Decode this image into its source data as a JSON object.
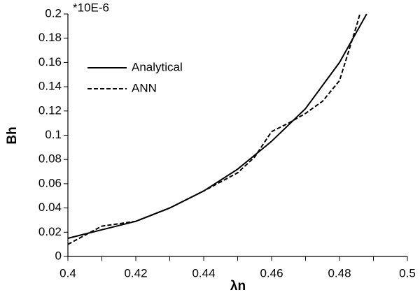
{
  "chart_data": {
    "type": "line",
    "x_label": "λn",
    "y_label": "Bh",
    "annotation": "*10E-6",
    "xlim": [
      0.4,
      0.5
    ],
    "xticks": [
      0.4,
      0.42,
      0.44,
      0.46,
      0.48,
      0.5
    ],
    "xminorticks": [
      0.41,
      0.43,
      0.45,
      0.47,
      0.49
    ],
    "ylim": [
      0,
      0.2
    ],
    "yticks": [
      0,
      0.02,
      0.04,
      0.06,
      0.08,
      0.1,
      0.12,
      0.14,
      0.16,
      0.18,
      0.2
    ],
    "legend": "upper left",
    "series": [
      {
        "name": "Analytical",
        "color": "#000000",
        "linestyle": "solid",
        "x": [
          0.4,
          0.41,
          0.42,
          0.43,
          0.44,
          0.45,
          0.46,
          0.47,
          0.48,
          0.488
        ],
        "values": [
          0.015,
          0.022,
          0.029,
          0.04,
          0.054,
          0.072,
          0.095,
          0.122,
          0.16,
          0.2
        ]
      },
      {
        "name": "ANN",
        "color": "#000000",
        "linestyle": "dashed",
        "x": [
          0.4,
          0.41,
          0.42,
          0.43,
          0.44,
          0.45,
          0.455,
          0.46,
          0.465,
          0.47,
          0.475,
          0.48,
          0.485,
          0.486
        ],
        "values": [
          0.01,
          0.025,
          0.029,
          0.04,
          0.054,
          0.069,
          0.082,
          0.103,
          0.11,
          0.118,
          0.128,
          0.145,
          0.19,
          0.2
        ]
      }
    ]
  }
}
